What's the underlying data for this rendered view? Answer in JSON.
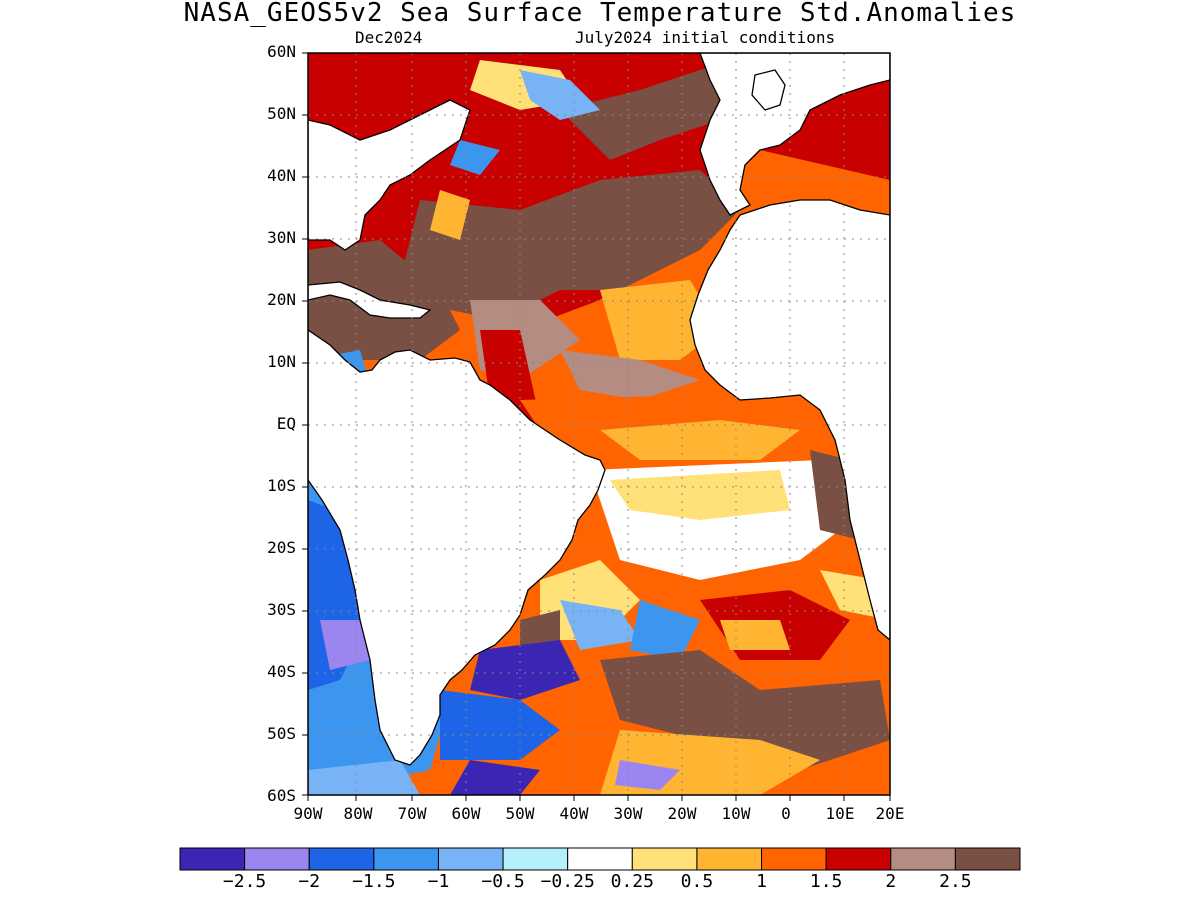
{
  "title": "NASA_GEOS5v2 Sea Surface Temperature Std.Anomalies",
  "subtitle_left": "Dec2024",
  "subtitle_right": "July2024 initial conditions",
  "lat_labels": [
    "60N",
    "50N",
    "40N",
    "30N",
    "20N",
    "10N",
    "EQ",
    "10S",
    "20S",
    "30S",
    "40S",
    "50S",
    "60S"
  ],
  "lon_labels": [
    "90W",
    "80W",
    "70W",
    "60W",
    "50W",
    "40W",
    "30W",
    "20W",
    "10W",
    "0",
    "10E",
    "20E"
  ],
  "colorbar": {
    "colors": [
      "#3b26b4",
      "#9b86f0",
      "#1e64e6",
      "#3c96f0",
      "#78b4f5",
      "#b4f0fa",
      "#ffffff",
      "#ffe178",
      "#ffb432",
      "#ff6400",
      "#c80000",
      "#b48c82",
      "#7a5045"
    ],
    "labels": [
      "-2.5",
      "-2",
      "-1.5",
      "-1",
      "-0.5",
      "-0.25",
      "0.25",
      "0.5",
      "1",
      "1.5",
      "2",
      "2.5"
    ]
  },
  "icons": [
    "coastline-map"
  ]
}
